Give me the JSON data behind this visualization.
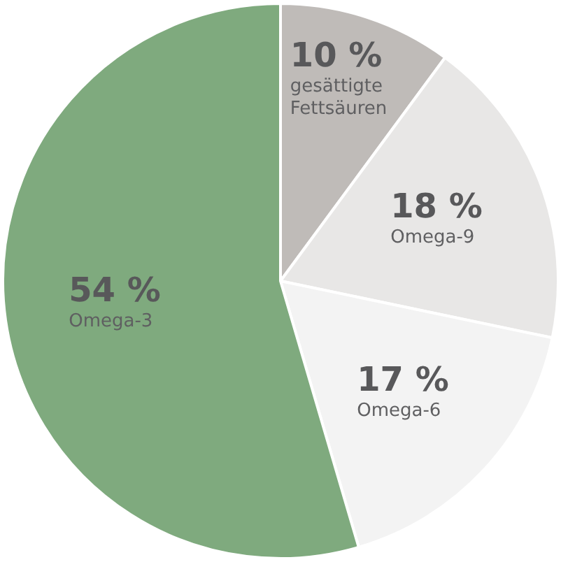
{
  "chart_data": {
    "type": "pie",
    "categories": [
      "gesättigte Fettsäuren",
      "Omega-9",
      "Omega-6",
      "Omega-3"
    ],
    "values": [
      10,
      18,
      17,
      54
    ],
    "colors": [
      "#bfbbb8",
      "#e8e7e6",
      "#f3f3f3",
      "#7faa7e"
    ],
    "value_labels": [
      "10 %",
      "18 %",
      "17 %",
      "54 %"
    ]
  }
}
